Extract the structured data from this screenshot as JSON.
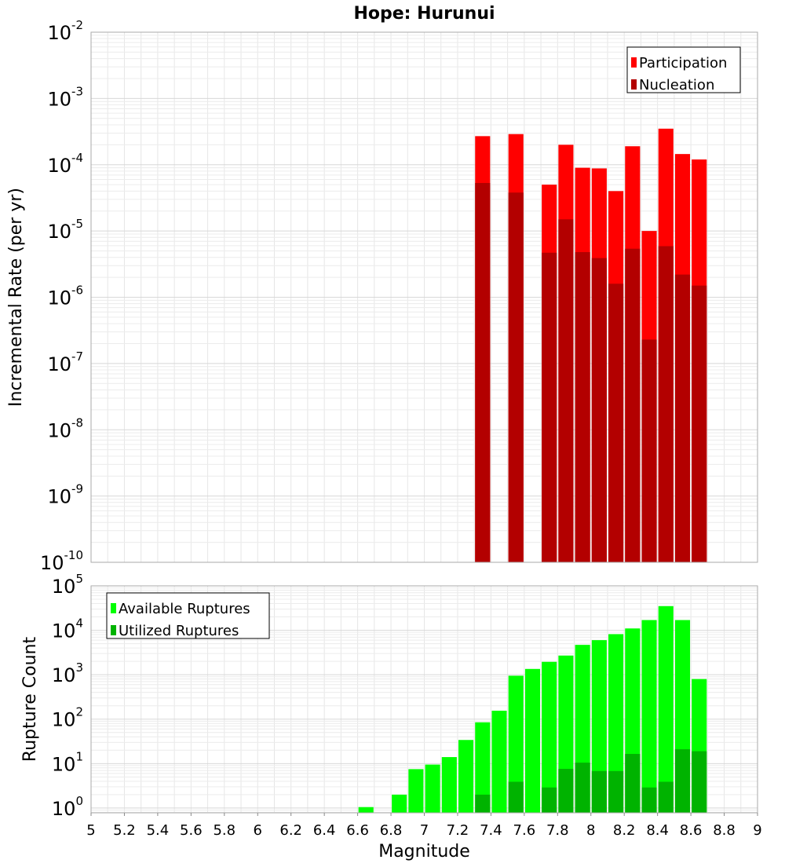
{
  "chart_data": [
    {
      "type": "bar",
      "title": "Hope: Hurunui",
      "ylabel": "Incremental Rate (per yr)",
      "xlabel": "",
      "y_scale": "log",
      "ylim": [
        1e-10,
        0.01
      ],
      "xlim": [
        5,
        9
      ],
      "y_tick_exponents": [
        "-10",
        "-9",
        "-8",
        "-7",
        "-6",
        "-5",
        "-4",
        "-3",
        "-2"
      ],
      "y_tick_base": "10",
      "grid": true,
      "legend_position": "top-right",
      "bar_width": 0.09,
      "series": [
        {
          "name": "Participation",
          "color": "#ff0000",
          "x": [
            7.35,
            7.55,
            7.75,
            7.85,
            7.95,
            8.05,
            8.15,
            8.25,
            8.35,
            8.45,
            8.55,
            8.65
          ],
          "values": [
            0.00027,
            0.00029,
            5e-05,
            0.0002,
            9e-05,
            8.8e-05,
            4e-05,
            0.00019,
            1e-05,
            0.00035,
            0.000145,
            0.00012
          ]
        },
        {
          "name": "Nucleation",
          "color": "#b30000",
          "x": [
            7.35,
            7.55,
            7.75,
            7.85,
            7.95,
            8.05,
            8.15,
            8.25,
            8.35,
            8.45,
            8.55,
            8.65
          ],
          "values": [
            5.3e-05,
            3.8e-05,
            4.7e-06,
            1.5e-05,
            4.8e-06,
            3.9e-06,
            1.6e-06,
            5.4e-06,
            2.3e-07,
            5.9e-06,
            2.2e-06,
            1.5e-06
          ]
        }
      ]
    },
    {
      "type": "bar",
      "title": "",
      "ylabel": "Rupture Count",
      "xlabel": "Magnitude",
      "y_scale": "log",
      "ylim": [
        0.78,
        100000
      ],
      "xlim": [
        5,
        9
      ],
      "x_ticks": [
        "5",
        "5.2",
        "5.4",
        "5.6",
        "5.8",
        "6",
        "6.2",
        "6.4",
        "6.6",
        "6.8",
        "7",
        "7.2",
        "7.4",
        "7.6",
        "7.8",
        "8",
        "8.2",
        "8.4",
        "8.6",
        "8.8",
        "9"
      ],
      "y_tick_exponents": [
        "0",
        "1",
        "2",
        "3",
        "4",
        "5"
      ],
      "y_tick_base": "10",
      "grid": true,
      "legend_position": "top-left",
      "bar_width": 0.09,
      "series": [
        {
          "name": "Available Ruptures",
          "color": "#00ff00",
          "x": [
            6.65,
            6.85,
            6.95,
            7.05,
            7.15,
            7.25,
            7.35,
            7.45,
            7.55,
            7.65,
            7.75,
            7.85,
            7.95,
            8.05,
            8.15,
            8.25,
            8.35,
            8.45,
            8.55,
            8.65
          ],
          "values": [
            1.05,
            2,
            7.5,
            9.5,
            14,
            34,
            85,
            155,
            950,
            1350,
            1950,
            2700,
            4700,
            6000,
            8200,
            11000,
            17000,
            35000,
            17000,
            800
          ]
        },
        {
          "name": "Utilized Ruptures",
          "color": "#00b300",
          "x": [
            7.35,
            7.55,
            7.75,
            7.85,
            7.95,
            8.05,
            8.15,
            8.25,
            8.35,
            8.45,
            8.55,
            8.65
          ],
          "values": [
            2,
            3.9,
            2.9,
            7.6,
            10.5,
            6.8,
            6.8,
            16.5,
            2.9,
            3.9,
            21,
            19
          ]
        }
      ]
    }
  ]
}
